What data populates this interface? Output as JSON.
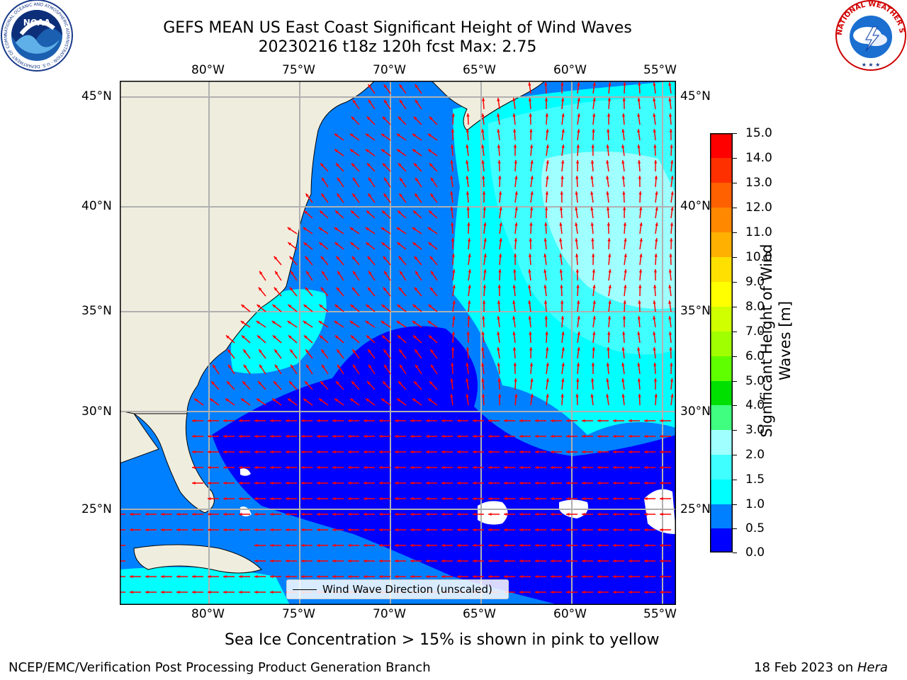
{
  "title": {
    "line1": "GEFS MEAN US East Coast Significant Height of Wind Waves",
    "line2": "20230216 t18z 120h fcst   Max: 2.75"
  },
  "map": {
    "lon_ticks": [
      "80°W",
      "75°W",
      "70°W",
      "65°W",
      "60°W",
      "55°W"
    ],
    "lat_ticks": [
      "45°N",
      "40°N",
      "35°N",
      "30°N",
      "25°N"
    ],
    "legend_label": "Wind Wave Direction (unscaled)",
    "arrow_color": "#ff0000",
    "land_color": "#efedde",
    "grid_color": "#b0b0b0"
  },
  "colorbar": {
    "label_line1": "Significant Height of Wind",
    "label_line2": "Waves [m]",
    "ticks": [
      "15.0",
      "14.0",
      "13.0",
      "12.0",
      "11.0",
      "10.0",
      "9.0",
      "8.0",
      "7.0",
      "6.0",
      "5.0",
      "4.0",
      "3.0",
      "2.0",
      "1.5",
      "1.0",
      "0.5",
      "0.0"
    ],
    "colors": [
      "#0000ff",
      "#0080ff",
      "#00ffff",
      "#40ffff",
      "#a0ffff",
      "#40ff80",
      "#00e000",
      "#60ff00",
      "#a0ff00",
      "#d0ff00",
      "#ffff00",
      "#ffe000",
      "#ffb000",
      "#ff8800",
      "#ff6000",
      "#ff3000",
      "#ff0000"
    ]
  },
  "footer": {
    "ice_note": "Sea Ice Concentration > 15% is shown in pink to yellow",
    "credit": "NCEP/EMC/Verification Post Processing Product Generation Branch",
    "date": "18 Feb 2023 on ",
    "machine": "Hera"
  },
  "logos": {
    "noaa_text": "NOAA",
    "noaa_ring": "NATIONAL OCEANIC AND ATMOSPHERIC ADMINISTRATION · U.S. DEPARTMENT OF COMMERCE",
    "nws_ring": "NATIONAL WEATHER SERVICE"
  }
}
